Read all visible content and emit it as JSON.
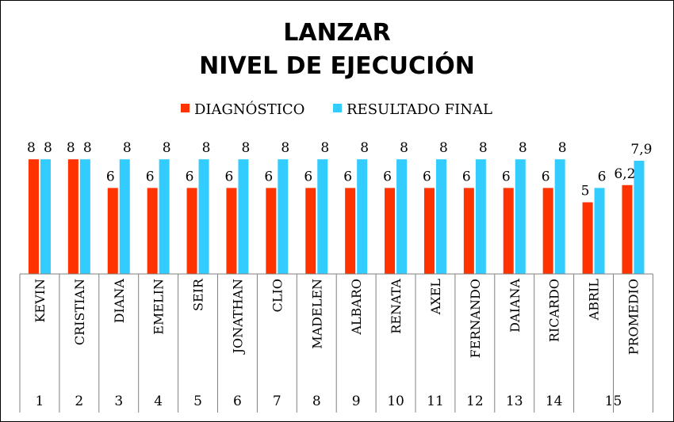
{
  "chart_data": {
    "type": "bar",
    "title": [
      "LANZAR",
      "NIVEL DE EJECUCIÓN"
    ],
    "legend_position": "top",
    "grid": false,
    "xlabel": "",
    "ylabel": "",
    "ylim": [
      0,
      10
    ],
    "categories": [
      "KEVIN",
      "CRISTIAN",
      "DIANA",
      "EMELIN",
      "SEIR",
      "JONATHAN",
      "CLIO",
      "MADELEN",
      "ALBARO",
      "RENATA",
      "AXEL",
      "FERNANDO",
      "DAIANA",
      "RICARDO",
      "ABRIL",
      "PROMEDIO"
    ],
    "numbers": [
      "1",
      "2",
      "3",
      "4",
      "5",
      "6",
      "7",
      "8",
      "9",
      "10",
      "11",
      "12",
      "13",
      "14",
      "15",
      ""
    ],
    "series": [
      {
        "name": "DIAGNÓSTICO",
        "color": "#ff3300",
        "values": [
          8,
          8,
          6,
          6,
          6,
          6,
          6,
          6,
          6,
          6,
          6,
          6,
          6,
          6,
          5,
          6.2
        ],
        "labels": [
          "8",
          "8",
          "6",
          "6",
          "6",
          "6",
          "6",
          "6",
          "6",
          "6",
          "6",
          "6",
          "6",
          "6",
          "5",
          "6,2"
        ]
      },
      {
        "name": "RESULTADO FINAL",
        "color": "#33ccff",
        "values": [
          8,
          8,
          8,
          8,
          8,
          8,
          8,
          8,
          8,
          8,
          8,
          8,
          8,
          8,
          6,
          7.9
        ],
        "labels": [
          "8",
          "8",
          "8",
          "8",
          "8",
          "8",
          "8",
          "8",
          "8",
          "8",
          "8",
          "8",
          "8",
          "8",
          "6",
          "7,9"
        ]
      }
    ]
  }
}
